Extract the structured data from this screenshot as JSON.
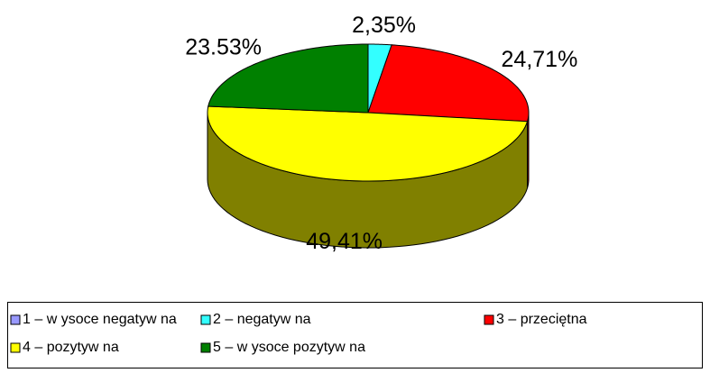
{
  "chart_data": {
    "type": "pie3d",
    "categories": [
      "1 – w ysoce negatyw na",
      "2 – negatyw na",
      "3 – przeciętna",
      "4 – pozytyw na",
      "5 – w ysoce pozytyw na"
    ],
    "values": [
      0,
      2.35,
      24.71,
      49.41,
      23.53
    ],
    "value_labels": [
      null,
      "2,35%",
      "24,71%",
      "49,41%",
      "23.53%"
    ],
    "colors": [
      "#9999ff",
      "#33ffff",
      "#ff0000",
      "#ffff00",
      "#008000"
    ],
    "legend": "bottom"
  }
}
